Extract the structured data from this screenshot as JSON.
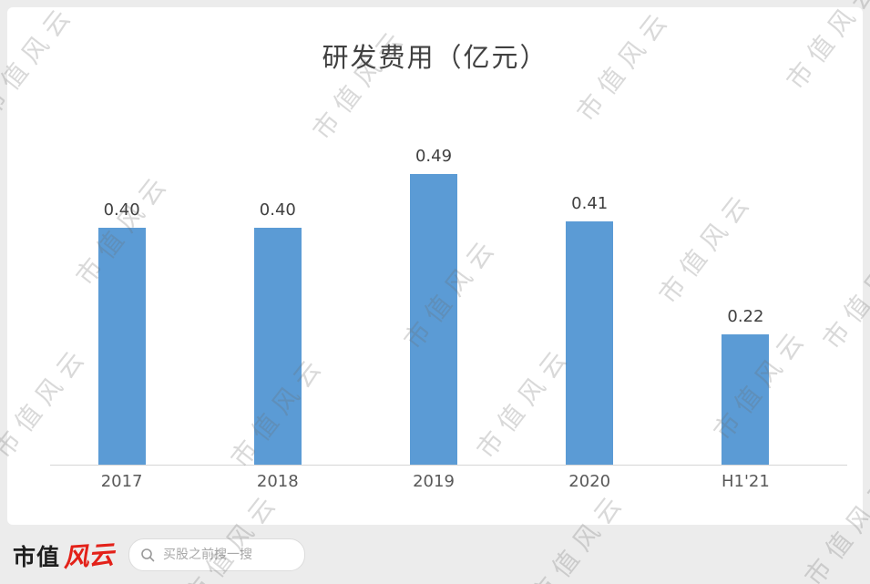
{
  "chart_data": {
    "type": "bar",
    "title": "研发费用（亿元）",
    "categories": [
      "2017",
      "2018",
      "2019",
      "2020",
      "H1'21"
    ],
    "values": [
      0.4,
      0.4,
      0.49,
      0.41,
      0.22
    ],
    "value_labels": [
      "0.40",
      "0.40",
      "0.49",
      "0.41",
      "0.22"
    ],
    "bar_color": "#5B9BD5",
    "xlabel": "",
    "ylabel": "",
    "ylim": [
      0,
      0.55
    ],
    "grid": false,
    "legend": false,
    "y_axis_visible": false,
    "baseline_color": "#d6d6d6"
  },
  "watermark": {
    "text": "市值风云",
    "color": "#c9c9c9"
  },
  "footer": {
    "logo_part1": "市值",
    "logo_part2": "风云",
    "search_placeholder": "买股之前搜一搜",
    "accent_color": "#e32119"
  }
}
